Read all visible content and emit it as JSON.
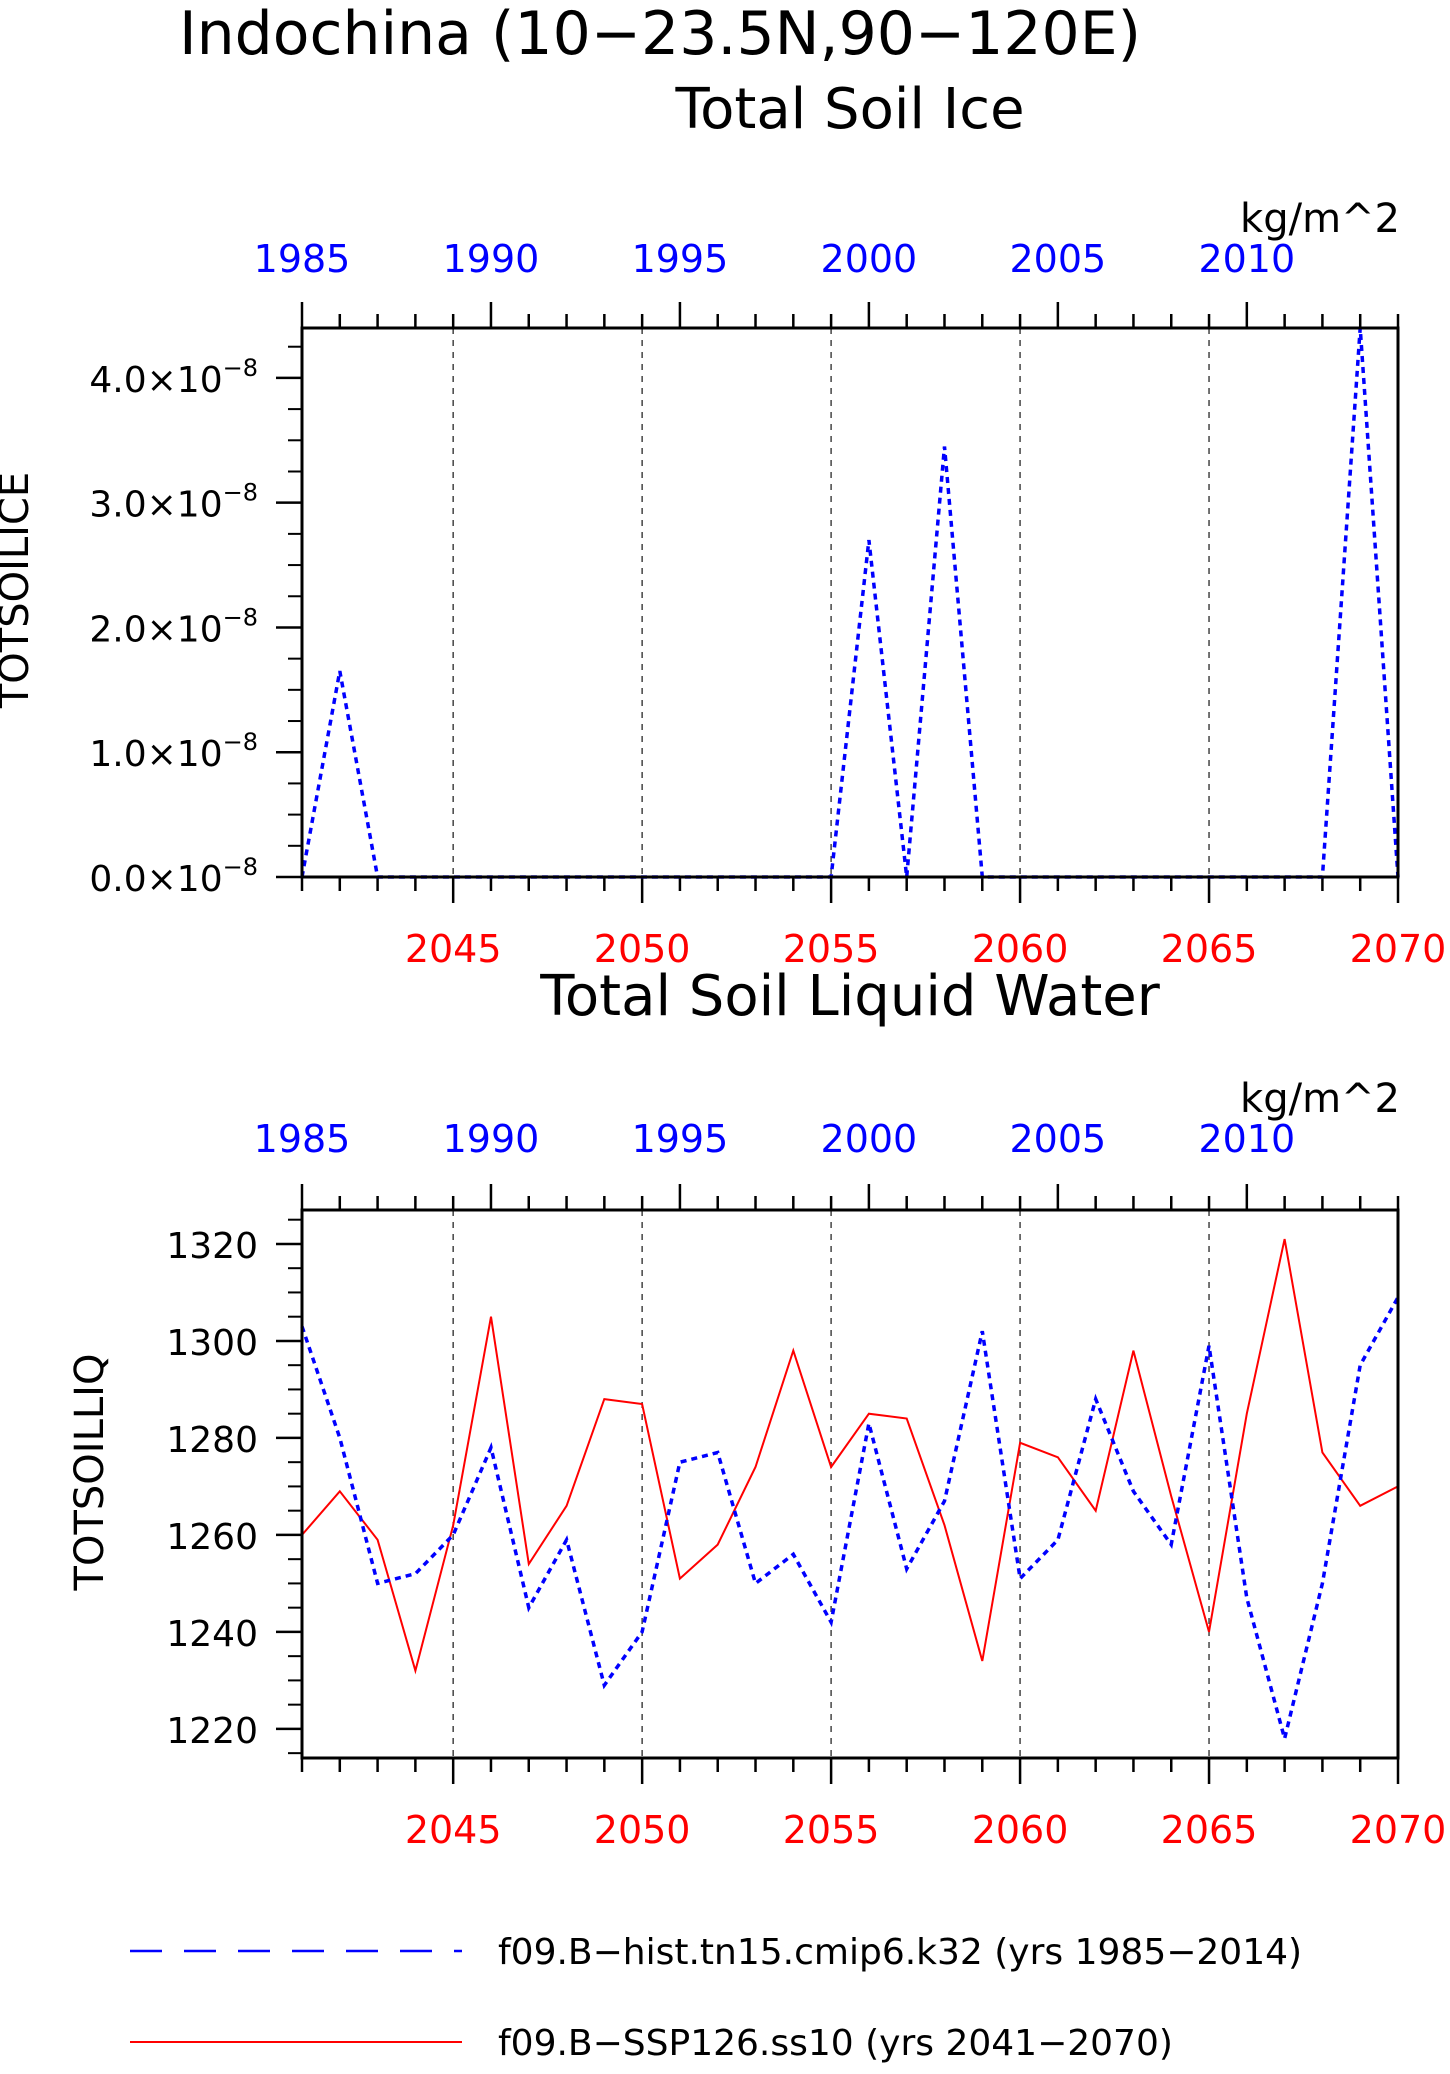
{
  "page": {
    "main_title": "Indochina (10−23.5N,90−120E)"
  },
  "colors": {
    "hist": "#0000ff",
    "ssp": "#ff0000",
    "axis": "#000000",
    "grid": "#444444"
  },
  "legend": {
    "items": [
      {
        "label": "f09.B−hist.tn15.cmip6.k32 (yrs 1985−2014)",
        "color": "#0000ff",
        "style": "dashed"
      },
      {
        "label": "f09.B−SSP126.ss10 (yrs 2041−2070)",
        "color": "#ff0000",
        "style": "solid"
      }
    ]
  },
  "chart_data": [
    {
      "type": "line",
      "title": "Total Soil Ice",
      "ylabel": "TOTSOILICE",
      "units": "kg/m^2",
      "ylim": [
        0,
        4.4e-08
      ],
      "yticks": [
        {
          "value": 0.0,
          "label": "0.0×10",
          "exp": "−8"
        },
        {
          "value": 1e-08,
          "label": "1.0×10",
          "exp": "−8"
        },
        {
          "value": 2e-08,
          "label": "2.0×10",
          "exp": "−8"
        },
        {
          "value": 3e-08,
          "label": "3.0×10",
          "exp": "−8"
        },
        {
          "value": 4e-08,
          "label": "4.0×10",
          "exp": "−8"
        }
      ],
      "bottom_axis": {
        "range": [
          2041,
          2070
        ],
        "tick_labels": [
          "2045",
          "2050",
          "2055",
          "2060",
          "2065",
          "2070"
        ]
      },
      "top_axis": {
        "range": [
          1985,
          2014
        ],
        "tick_labels": [
          "1985",
          "1990",
          "1995",
          "2000",
          "2005",
          "2010"
        ]
      },
      "grid": "vertical dashed at 2045, 2050, 2055, 2060, 2065",
      "series": [
        {
          "name": "f09.B−hist.tn15.cmip6.k32 (yrs 1985−2014)",
          "axis": "top",
          "x": [
            1985,
            1986,
            1987,
            1988,
            1989,
            1990,
            1991,
            1992,
            1993,
            1994,
            1995,
            1996,
            1997,
            1998,
            1999,
            2000,
            2001,
            2002,
            2003,
            2004,
            2005,
            2006,
            2007,
            2008,
            2009,
            2010,
            2011,
            2012,
            2013,
            2014
          ],
          "values": [
            0,
            1.65e-08,
            0,
            0,
            0,
            0,
            0,
            0,
            0,
            0,
            0,
            0,
            0,
            0,
            0,
            2.7e-08,
            0,
            3.45e-08,
            0,
            0,
            0,
            0,
            0,
            0,
            0,
            0,
            0,
            0,
            4.4e-08,
            0
          ]
        },
        {
          "name": "f09.B−SSP126.ss10 (yrs 2041−2070)",
          "axis": "bottom",
          "x": [
            2041,
            2042,
            2043,
            2044,
            2045,
            2046,
            2047,
            2048,
            2049,
            2050,
            2051,
            2052,
            2053,
            2054,
            2055,
            2056,
            2057,
            2058,
            2059,
            2060,
            2061,
            2062,
            2063,
            2064,
            2065,
            2066,
            2067,
            2068,
            2069,
            2070
          ],
          "values": [
            0,
            0,
            0,
            0,
            0,
            0,
            0,
            0,
            0,
            0,
            0,
            0,
            0,
            0,
            0,
            0,
            0,
            0,
            0,
            0,
            0,
            0,
            0,
            0,
            0,
            0,
            0,
            0,
            0,
            0
          ]
        }
      ]
    },
    {
      "type": "line",
      "title": "Total Soil Liquid Water",
      "ylabel": "TOTSOILLIQ",
      "units": "kg/m^2",
      "ylim": [
        1214,
        1327
      ],
      "yticks": [
        {
          "value": 1220,
          "label": "1220"
        },
        {
          "value": 1240,
          "label": "1240"
        },
        {
          "value": 1260,
          "label": "1260"
        },
        {
          "value": 1280,
          "label": "1280"
        },
        {
          "value": 1300,
          "label": "1300"
        },
        {
          "value": 1320,
          "label": "1320"
        }
      ],
      "bottom_axis": {
        "range": [
          2041,
          2070
        ],
        "tick_labels": [
          "2045",
          "2050",
          "2055",
          "2060",
          "2065",
          "2070"
        ]
      },
      "top_axis": {
        "range": [
          1985,
          2014
        ],
        "tick_labels": [
          "1985",
          "1990",
          "1995",
          "2000",
          "2005",
          "2010"
        ]
      },
      "grid": "vertical dashed at 2045, 2050, 2055, 2060, 2065",
      "series": [
        {
          "name": "f09.B−hist.tn15.cmip6.k32 (yrs 1985−2014)",
          "axis": "top",
          "x": [
            1985,
            1986,
            1987,
            1988,
            1989,
            1990,
            1991,
            1992,
            1993,
            1994,
            1995,
            1996,
            1997,
            1998,
            1999,
            2000,
            2001,
            2002,
            2003,
            2004,
            2005,
            2006,
            2007,
            2008,
            2009,
            2010,
            2011,
            2012,
            2013,
            2014
          ],
          "values": [
            1303,
            1280,
            1250,
            1252,
            1260,
            1278,
            1245,
            1259,
            1229,
            1240,
            1275,
            1277,
            1250,
            1256,
            1242,
            1283,
            1253,
            1267,
            1302,
            1251,
            1259,
            1288,
            1269,
            1258,
            1299,
            1247,
            1218,
            1250,
            1295,
            1309
          ]
        },
        {
          "name": "f09.B−SSP126.ss10 (yrs 2041−2070)",
          "axis": "bottom",
          "x": [
            2041,
            2042,
            2043,
            2044,
            2045,
            2046,
            2047,
            2048,
            2049,
            2050,
            2051,
            2052,
            2053,
            2054,
            2055,
            2056,
            2057,
            2058,
            2059,
            2060,
            2061,
            2062,
            2063,
            2064,
            2065,
            2066,
            2067,
            2068,
            2069,
            2070
          ],
          "values": [
            1260,
            1269,
            1259,
            1232,
            1262,
            1305,
            1254,
            1266,
            1288,
            1287,
            1251,
            1258,
            1274,
            1298,
            1274,
            1285,
            1284,
            1262,
            1234,
            1279,
            1276,
            1265,
            1298,
            1268,
            1240,
            1285,
            1321,
            1277,
            1266,
            1270
          ]
        }
      ]
    }
  ]
}
